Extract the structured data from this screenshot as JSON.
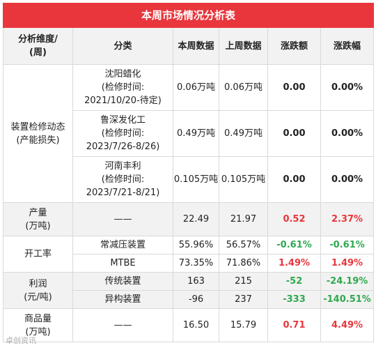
{
  "title": "本周市场情况分析表",
  "headers": {
    "dimension": "分析维度/\n(周)",
    "category": "分类",
    "this_week": "本周数据",
    "last_week": "上周数据",
    "change": "涨跌额",
    "change_pct": "涨跌幅"
  },
  "groups": {
    "maintenance": {
      "label": "装置检修动态\n(产能损失)",
      "rows": [
        {
          "category": "沈阳蜡化\n(检修时间:\n2021/10/20-待定)",
          "this_week": "0.06万吨",
          "last_week": "0.06万吨",
          "change": "0.00",
          "change_pct": "0.00%"
        },
        {
          "category": "鲁深发化工\n(检修时间:\n2023/7/26-8/26)",
          "this_week": "0.49万吨",
          "last_week": "0.49万吨",
          "change": "0.00",
          "change_pct": "0.00%"
        },
        {
          "category": "河南丰利\n(检修时间:\n2023/7/21-8/21)",
          "this_week": "0.105万吨",
          "last_week": "0.105万吨",
          "change": "0.00",
          "change_pct": "0.00%"
        }
      ]
    },
    "output": {
      "label": "产量\n(万吨)",
      "rows": [
        {
          "category": "——",
          "this_week": "22.49",
          "last_week": "21.97",
          "change": "0.52",
          "change_pct": "2.37%"
        }
      ]
    },
    "operating_rate": {
      "label": "开工率",
      "rows": [
        {
          "category": "常减压装置",
          "this_week": "55.96%",
          "last_week": "56.57%",
          "change": "-0.61%",
          "change_pct": "-0.61%"
        },
        {
          "category": "MTBE",
          "this_week": "73.35%",
          "last_week": "71.86%",
          "change": "1.49%",
          "change_pct": "1.49%"
        }
      ]
    },
    "profit": {
      "label": "利润\n(元/吨)",
      "rows": [
        {
          "category": "传统装置",
          "this_week": "163",
          "last_week": "215",
          "change": "-52",
          "change_pct": "-24.19%"
        },
        {
          "category": "异构装置",
          "this_week": "-96",
          "last_week": "237",
          "change": "-333",
          "change_pct": "-140.51%"
        }
      ]
    },
    "commodity": {
      "label": "商品量\n(万吨)",
      "rows": [
        {
          "category": "——",
          "this_week": "16.50",
          "last_week": "15.79",
          "change": "0.71",
          "change_pct": "4.49%"
        }
      ]
    }
  },
  "colors": {
    "header_red": "#e8363c",
    "up": "#e8363c",
    "down": "#2fa84f",
    "flat": "#222222"
  },
  "watermark": "卓创资讯"
}
